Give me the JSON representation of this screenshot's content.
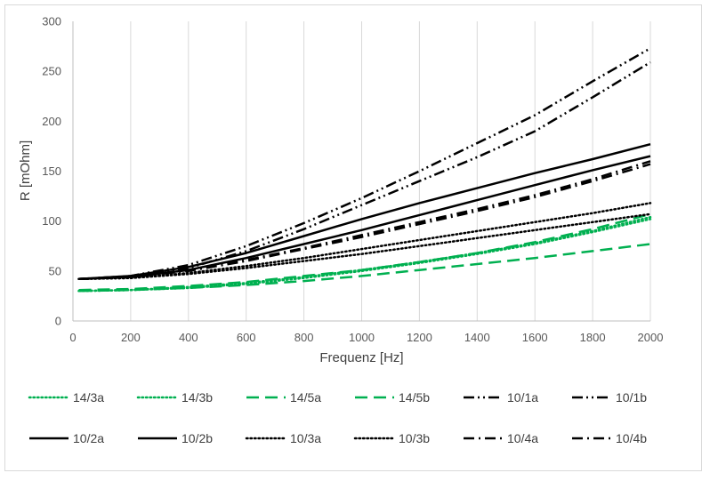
{
  "chart_data": {
    "type": "line",
    "title": "",
    "xlabel": "Frequenz [Hz]",
    "ylabel": "R [mOhm]",
    "xlim": [
      0,
      2000
    ],
    "ylim": [
      0,
      300
    ],
    "xticks": [
      0,
      200,
      400,
      600,
      800,
      1000,
      1200,
      1400,
      1600,
      1800,
      2000
    ],
    "yticks": [
      0,
      50,
      100,
      150,
      200,
      250,
      300
    ],
    "grid": "vertical",
    "legend_position": "bottom",
    "x": [
      20,
      200,
      400,
      600,
      800,
      1000,
      1200,
      1400,
      1600,
      1800,
      2000
    ],
    "series": [
      {
        "name": "14/3a",
        "color": "#00b050",
        "dash": "dotted",
        "values": [
          30,
          31,
          34,
          38,
          44,
          51,
          59,
          68,
          78,
          90,
          104
        ]
      },
      {
        "name": "14/3b",
        "color": "#00b050",
        "dash": "dotted",
        "values": [
          30,
          31,
          33,
          37,
          43,
          50,
          58,
          67,
          77,
          89,
          102
        ]
      },
      {
        "name": "14/5a",
        "color": "#00b050",
        "dash": "longdash",
        "values": [
          31,
          32,
          35,
          39,
          45,
          51,
          59,
          68,
          79,
          92,
          107
        ]
      },
      {
        "name": "14/5b",
        "color": "#00b050",
        "dash": "longdash",
        "values": [
          30,
          31,
          33,
          36,
          40,
          45,
          51,
          57,
          63,
          70,
          77
        ]
      },
      {
        "name": "10/1a",
        "color": "#000000",
        "dash": "dashdotdot",
        "values": [
          42,
          44,
          53,
          70,
          92,
          116,
          140,
          164,
          190,
          224,
          259
        ]
      },
      {
        "name": "10/1b",
        "color": "#000000",
        "dash": "dashdotdot",
        "values": [
          42,
          45,
          56,
          75,
          98,
          123,
          150,
          178,
          206,
          240,
          273
        ]
      },
      {
        "name": "10/2a",
        "color": "#000000",
        "dash": "solid",
        "values": [
          42,
          44,
          51,
          63,
          77,
          91,
          106,
          121,
          136,
          151,
          165
        ]
      },
      {
        "name": "10/2b",
        "color": "#000000",
        "dash": "solid",
        "values": [
          42,
          45,
          54,
          68,
          85,
          102,
          118,
          133,
          148,
          162,
          177
        ]
      },
      {
        "name": "10/3a",
        "color": "#000000",
        "dash": "dotted",
        "values": [
          42,
          43,
          47,
          53,
          60,
          67,
          75,
          83,
          91,
          99,
          107
        ]
      },
      {
        "name": "10/3b",
        "color": "#000000",
        "dash": "dotted",
        "values": [
          42,
          43,
          48,
          55,
          63,
          72,
          81,
          90,
          99,
          108,
          118
        ]
      },
      {
        "name": "10/4a",
        "color": "#000000",
        "dash": "dashdot",
        "values": [
          42,
          44,
          50,
          60,
          72,
          84,
          97,
          110,
          124,
          140,
          157
        ]
      },
      {
        "name": "10/4b",
        "color": "#000000",
        "dash": "dashdot",
        "values": [
          42,
          44,
          51,
          61,
          73,
          86,
          99,
          112,
          126,
          142,
          160
        ]
      }
    ]
  }
}
